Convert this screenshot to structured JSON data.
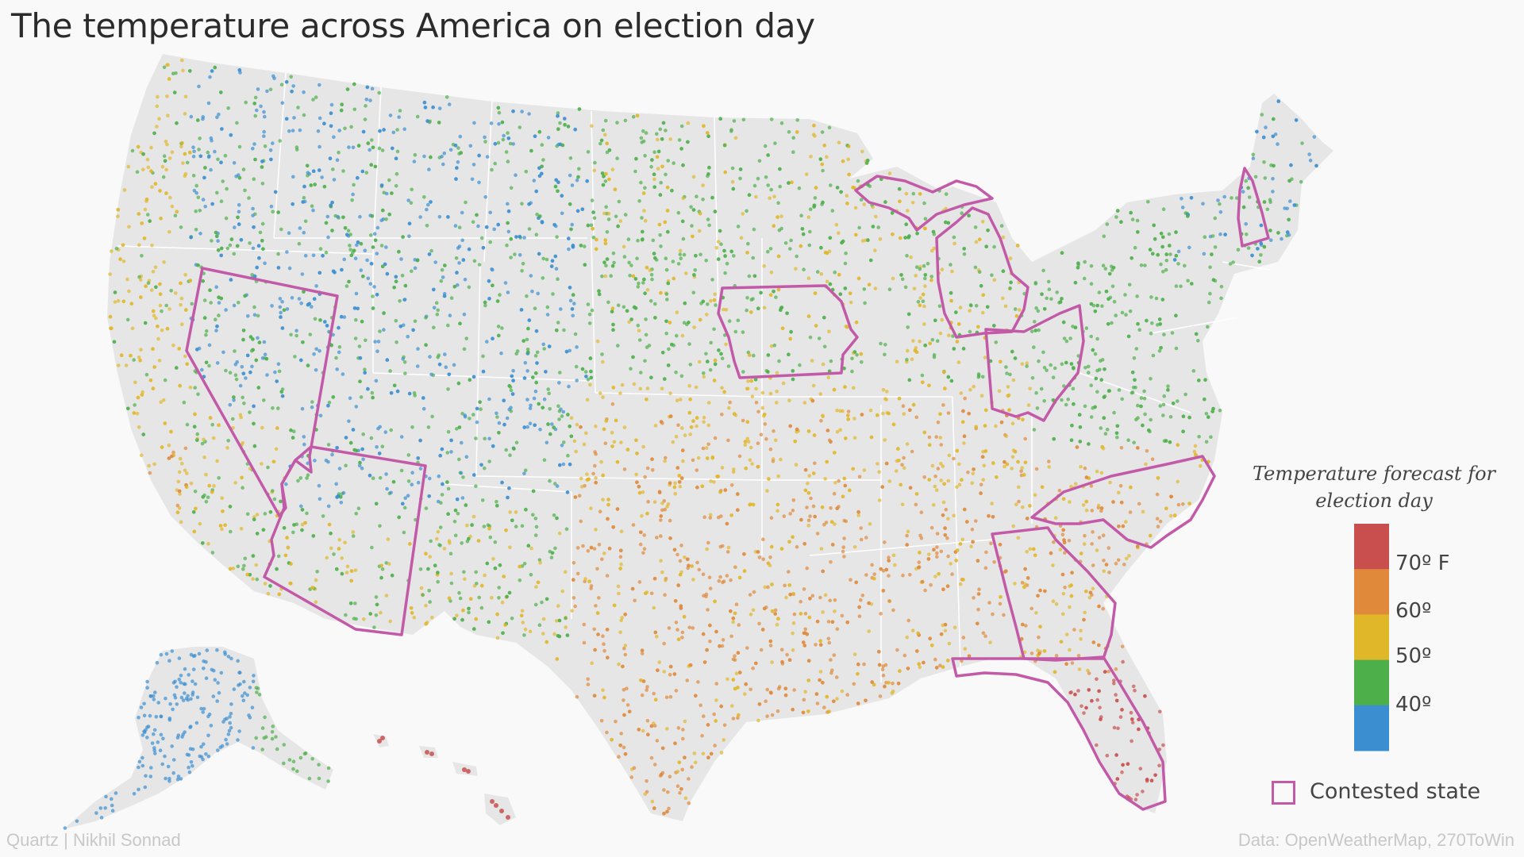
{
  "title": "The temperature across America on election day",
  "legend": {
    "title_line1": "Temperature forecast for",
    "title_line2": "election day",
    "bands": [
      {
        "label": "",
        "color": "#c94f4f"
      },
      {
        "label": "70º F",
        "color": "#e0893b"
      },
      {
        "label": "60º",
        "color": "#e1b72a"
      },
      {
        "label": "50º",
        "color": "#4daf4a"
      },
      {
        "label": "40º",
        "color": "#3b8fd1"
      }
    ],
    "contested_label": "Contested state",
    "contested_color": "#c25aa8"
  },
  "credits": {
    "left": "Quartz | Nikhil Sonnad",
    "right": "Data: OpenWeatherMap, 270ToWin"
  },
  "map": {
    "land_color": "#e6e6e6",
    "contested_states": [
      "Nevada",
      "Arizona",
      "Iowa",
      "Michigan",
      "Ohio",
      "New Hampshire",
      "North Carolina",
      "Georgia",
      "Florida"
    ]
  }
}
